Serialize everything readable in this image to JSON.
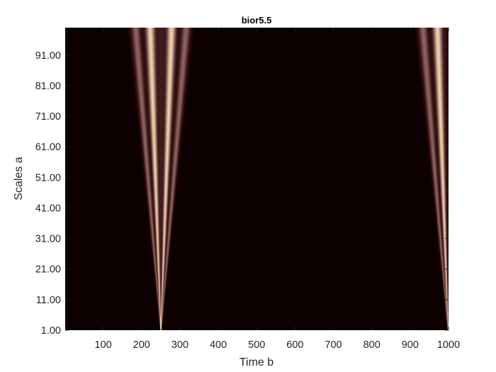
{
  "chart_data": {
    "type": "heatmap",
    "title": "bior5.5",
    "xlabel": "Time b",
    "ylabel": "Scales a",
    "xlim": [
      1,
      1000
    ],
    "ylim": [
      1,
      100
    ],
    "x_ticks": [
      100,
      200,
      300,
      400,
      500,
      600,
      700,
      800,
      900,
      1000
    ],
    "x_tick_labels": [
      "100",
      "200",
      "300",
      "400",
      "500",
      "600",
      "700",
      "800",
      "900",
      "1000"
    ],
    "y_ticks": [
      1,
      11,
      21,
      31,
      41,
      51,
      61,
      71,
      81,
      91
    ],
    "y_tick_labels": [
      "1.00",
      "11.00",
      "21.00",
      "31.00",
      "41.00",
      "51.00",
      "61.00",
      "71.00",
      "81.00",
      "91.00"
    ],
    "colormap": "pink",
    "colormap_stops": [
      "#1e0000",
      "#6b4343",
      "#b07a7a",
      "#d5b08e",
      "#f2eac2",
      "#ffffff"
    ],
    "background_color": "#0d0000",
    "grid": false,
    "features": [
      {
        "center_time": 250,
        "apex_scale": 1,
        "lobes": [
          {
            "offset": -66,
            "intensity": 0.3
          },
          {
            "offset": -28,
            "intensity": 0.7
          },
          {
            "offset": 0,
            "intensity": 0.05
          },
          {
            "offset": 28,
            "intensity": 0.7
          },
          {
            "offset": 66,
            "intensity": 0.3
          }
        ]
      },
      {
        "center_time": 1000,
        "apex_scale": 1,
        "lobes": [
          {
            "offset": -66,
            "intensity": 0.3
          },
          {
            "offset": -28,
            "intensity": 0.7
          }
        ]
      }
    ]
  }
}
